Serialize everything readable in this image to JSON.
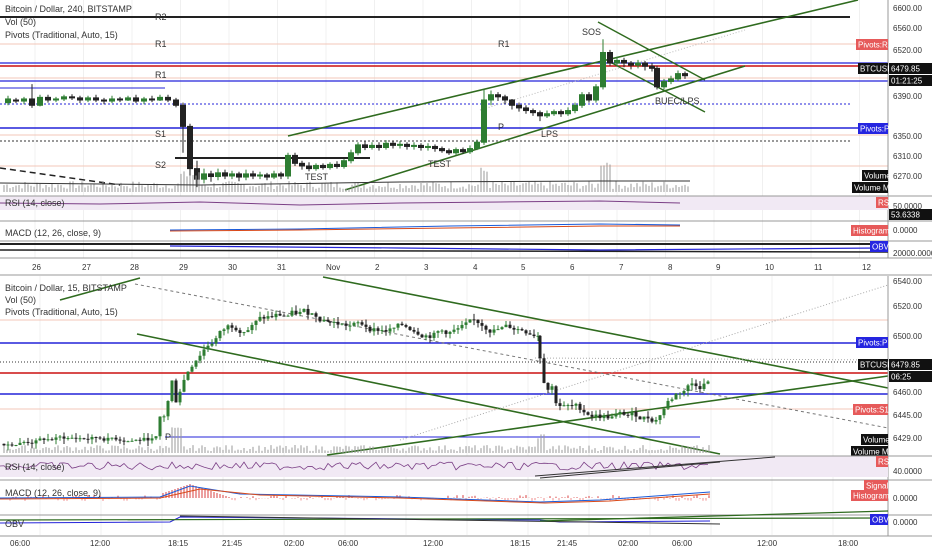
{
  "top_panel": {
    "title": "Bitcoin / Dollar, 240, BITSTAMP",
    "vol": "Vol (50)",
    "pivots": "Pivots (Traditional, Auto, 15)",
    "annotations": [
      "SOS",
      "BUEC/LPS",
      "LPS",
      "TEST",
      "TEST"
    ],
    "price_ticks": [
      "6600.00",
      "6560.00",
      "6520.00",
      "6479.85",
      "6430.00",
      "6390.00",
      "6350.00",
      "6310.00",
      "6270.00"
    ],
    "x_ticks": [
      "26",
      "27",
      "28",
      "29",
      "30",
      "31",
      "Nov",
      "2",
      "3",
      "4",
      "5",
      "6",
      "7",
      "8",
      "9",
      "10",
      "11",
      "12"
    ],
    "badges": {
      "pivots_r1": "Pivots:R1",
      "pivots_p": "Pivots:P",
      "btcusd": "BTCUSD",
      "price": "6479.85",
      "countdown": "01:21:25",
      "volume": "Volume",
      "volume_ma": "Volume MA"
    },
    "pivot_levels": [
      "R2",
      "R1",
      "P",
      "S1",
      "S2"
    ],
    "rsi": {
      "label": "RSI (14, close)",
      "badge": "RSI",
      "value": "53.6338",
      "ticks": [
        "50.0000"
      ]
    },
    "macd": {
      "label": "MACD (12, 26, close, 9)",
      "badge": "Histogram",
      "value": "0.0000"
    },
    "obv": {
      "badge": "OBV",
      "value": "20000.0000"
    }
  },
  "bottom_panel": {
    "title": "Bitcoin / Dollar, 15, BITSTAMP",
    "vol": "Vol (50)",
    "pivots": "Pivots (Traditional, Auto, 15)",
    "price_ticks": [
      "6540.00",
      "6520.00",
      "6500.00",
      "6479.85",
      "6460.00",
      "6445.00",
      "6429.00"
    ],
    "x_ticks": [
      "06:00",
      "12:00",
      "18:15",
      "21:45",
      "02:00",
      "06:00",
      "12:00",
      "18:15",
      "21:45",
      "02:00",
      "06:00",
      "12:00",
      "18:00"
    ],
    "badges": {
      "pivots_p": "Pivots:P",
      "btcusd": "BTCUSD",
      "price": "6479.85",
      "countdown": "06:25",
      "pivots_s1": "Pivots:S1",
      "volume": "Volume",
      "volume_ma": "Volume MA"
    },
    "rsi": {
      "label": "RSI (14, close)",
      "badge": "RSI",
      "value": "40.0000"
    },
    "macd": {
      "label": "MACD (12, 26, close, 9)",
      "signal": "Signal",
      "histogram": "Histogram",
      "value": "0.0000"
    },
    "obv": {
      "label": "OBV",
      "badge": "OBV",
      "value": "0.0000"
    }
  },
  "colors": {
    "up": "#2e7d32",
    "down": "#222",
    "channel": "#2f6b1f",
    "blue": "#2323d9",
    "red": "#cc1111",
    "pivot_badge": "#e65a5a",
    "blue_badge": "#2525e0"
  },
  "chart_data": [
    {
      "type": "candlestick",
      "title": "Bitcoin / Dollar, 240, BITSTAMP",
      "x_ticks": [
        "26",
        "27",
        "28",
        "29",
        "30",
        "31",
        "Nov",
        "2",
        "3",
        "4",
        "5",
        "6",
        "7",
        "8",
        "9",
        "10",
        "11",
        "12"
      ],
      "ylim": [
        6250,
        6610
      ],
      "last_price": 6479.85
    },
    {
      "type": "candlestick",
      "title": "Bitcoin / Dollar, 15, BITSTAMP",
      "x_ticks": [
        "06:00",
        "12:00",
        "18:15",
        "21:45",
        "02:00",
        "06:00",
        "12:00",
        "18:15",
        "21:45",
        "02:00",
        "06:00",
        "12:00",
        "18:00"
      ],
      "ylim": [
        6420,
        6545
      ],
      "last_price": 6479.85
    }
  ]
}
